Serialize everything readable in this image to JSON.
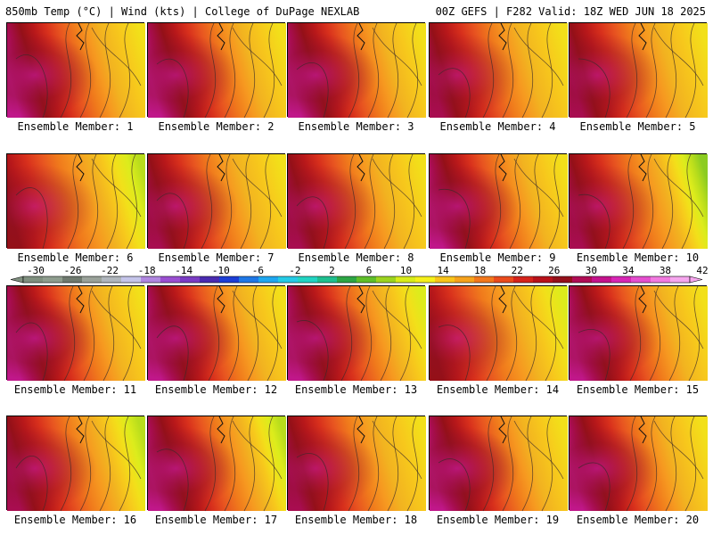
{
  "header": {
    "left": "850mb Temp (°C) | Wind (kts) | College of DuPage NEXLAB",
    "right": "00Z GEFS | F282 Valid: 18Z WED JUN 18 2025"
  },
  "map": {
    "variable": "850mb Temperature",
    "units": "°C",
    "model": "GEFS",
    "forecast_hour": "F282",
    "members": [
      {
        "label": "Ensemble Member: 1",
        "warm": 0.8,
        "cool_east": 0.25
      },
      {
        "label": "Ensemble Member: 2",
        "warm": 0.75,
        "cool_east": 0.2
      },
      {
        "label": "Ensemble Member: 3",
        "warm": 0.85,
        "cool_east": 0.35
      },
      {
        "label": "Ensemble Member: 4",
        "warm": 0.6,
        "cool_east": 0.15
      },
      {
        "label": "Ensemble Member: 5",
        "warm": 0.65,
        "cool_east": 0.2
      },
      {
        "label": "Ensemble Member: 6",
        "warm": 0.55,
        "cool_east": 0.85
      },
      {
        "label": "Ensemble Member: 7",
        "warm": 0.7,
        "cool_east": 0.3
      },
      {
        "label": "Ensemble Member: 8",
        "warm": 0.65,
        "cool_east": 0.25
      },
      {
        "label": "Ensemble Member: 9",
        "warm": 0.8,
        "cool_east": 0.3
      },
      {
        "label": "Ensemble Member: 10",
        "warm": 0.6,
        "cool_east": 0.9
      },
      {
        "label": "Ensemble Member: 11",
        "warm": 0.9,
        "cool_east": 0.3
      },
      {
        "label": "Ensemble Member: 12",
        "warm": 0.85,
        "cool_east": 0.3
      },
      {
        "label": "Ensemble Member: 13",
        "warm": 0.8,
        "cool_east": 0.4
      },
      {
        "label": "Ensemble Member: 14",
        "warm": 0.55,
        "cool_east": 0.4
      },
      {
        "label": "Ensemble Member: 15",
        "warm": 0.75,
        "cool_east": 0.3
      },
      {
        "label": "Ensemble Member: 16",
        "warm": 0.7,
        "cool_east": 0.75
      },
      {
        "label": "Ensemble Member: 17",
        "warm": 0.85,
        "cool_east": 0.85
      },
      {
        "label": "Ensemble Member: 18",
        "warm": 0.65,
        "cool_east": 0.25
      },
      {
        "label": "Ensemble Member: 19",
        "warm": 0.9,
        "cool_east": 0.3
      },
      {
        "label": "Ensemble Member: 20",
        "warm": 0.85,
        "cool_east": 0.35
      }
    ]
  },
  "colorbar": {
    "tick_labels": [
      "-30",
      "-26",
      "-22",
      "-18",
      "-14",
      "-10",
      "-6",
      "-2",
      "2",
      "6",
      "10",
      "14",
      "18",
      "22",
      "26",
      "30",
      "34",
      "38",
      "42"
    ],
    "colors": [
      "#7f8f7f",
      "#8e9d8e",
      "#6f7a6f",
      "#9aa29a",
      "#b0b6bd",
      "#c5c5ea",
      "#b087e0",
      "#9a4fd1",
      "#7a3cc4",
      "#4a2bb0",
      "#1c3ed6",
      "#1f78e6",
      "#1fa7f0",
      "#25cbe6",
      "#22d4c2",
      "#1fbf8f",
      "#2da644",
      "#5fbf2a",
      "#9cd41f",
      "#d8ec1a",
      "#f5f01a",
      "#f8c41a",
      "#f6a21c",
      "#f2781c",
      "#ea4b1c",
      "#d5241b",
      "#b8121a",
      "#94101a",
      "#b00c55",
      "#c4138c",
      "#d826b5",
      "#e54fcf",
      "#f27ae0",
      "#f6a6ee"
    ]
  }
}
